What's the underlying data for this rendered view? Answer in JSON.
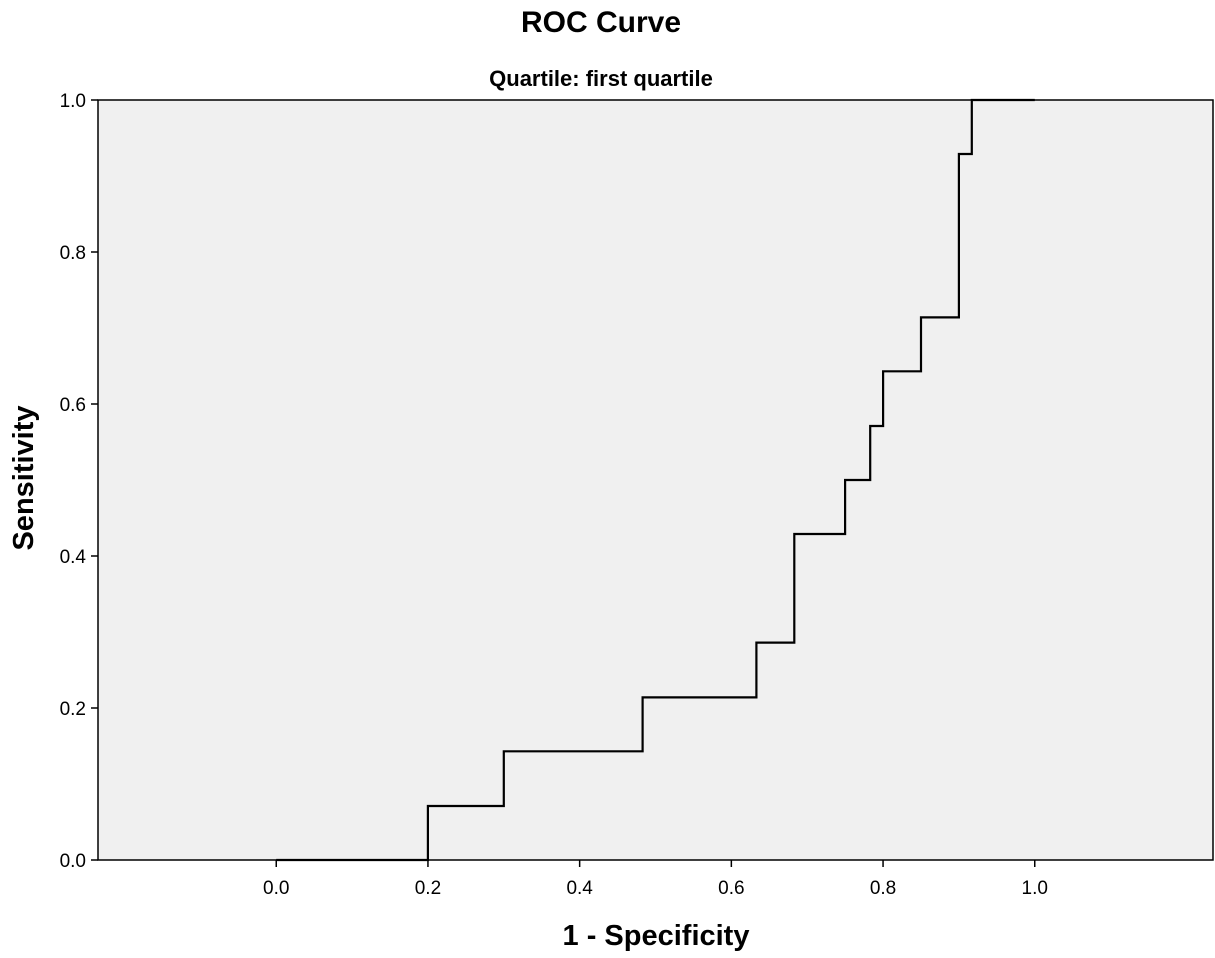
{
  "chart_data": {
    "type": "line",
    "title": "ROC Curve",
    "subtitle": "Quartile: first quartile",
    "xlabel": "1 - Specificity",
    "ylabel": "Sensitivity",
    "xlim": [
      -0.235,
      1.235
    ],
    "ylim": [
      0,
      1
    ],
    "x_ticks": [
      "0.0",
      "0.2",
      "0.4",
      "0.6",
      "0.8",
      "1.0"
    ],
    "y_ticks": [
      "0.0",
      "0.2",
      "0.4",
      "0.6",
      "0.8",
      "1.0"
    ],
    "grid": false,
    "series": [
      {
        "points": [
          [
            0.0,
            0.0
          ],
          [
            0.2,
            0.0
          ],
          [
            0.2,
            0.071
          ],
          [
            0.3,
            0.071
          ],
          [
            0.3,
            0.143
          ],
          [
            0.483,
            0.143
          ],
          [
            0.483,
            0.214
          ],
          [
            0.633,
            0.214
          ],
          [
            0.633,
            0.286
          ],
          [
            0.683,
            0.286
          ],
          [
            0.683,
            0.429
          ],
          [
            0.75,
            0.429
          ],
          [
            0.75,
            0.5
          ],
          [
            0.783,
            0.5
          ],
          [
            0.783,
            0.571
          ],
          [
            0.8,
            0.571
          ],
          [
            0.8,
            0.643
          ],
          [
            0.85,
            0.643
          ],
          [
            0.85,
            0.714
          ],
          [
            0.9,
            0.714
          ],
          [
            0.9,
            0.929
          ],
          [
            0.917,
            0.929
          ],
          [
            0.917,
            1.0
          ],
          [
            1.0,
            1.0
          ]
        ]
      }
    ],
    "colors": {
      "plot_background": "#f0f0f0",
      "line": "#000000"
    }
  }
}
